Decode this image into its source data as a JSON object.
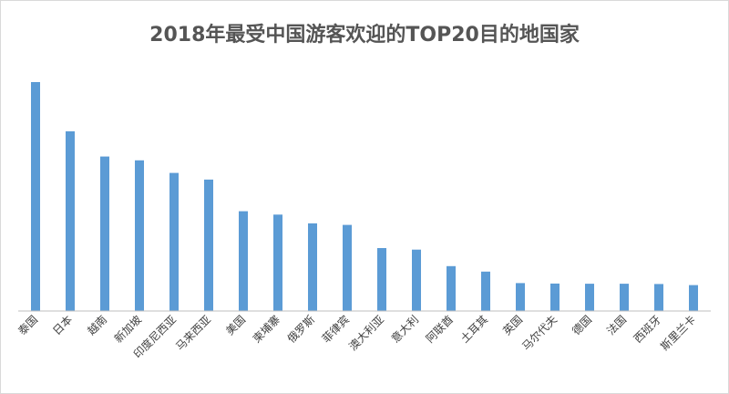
{
  "chart_data": {
    "type": "bar",
    "title": "2018年最受中国游客欢迎的TOP20目的地国家",
    "xlabel": "",
    "ylabel": "",
    "ylim": [
      0,
      100
    ],
    "grid": false,
    "legend": "none",
    "bar_color": "#5b9bd5",
    "categories": [
      "泰国",
      "日本",
      "越南",
      "新加坡",
      "印度尼西亚",
      "马来西亚",
      "美国",
      "柬埔寨",
      "俄罗斯",
      "菲律宾",
      "澳大利亚",
      "意大利",
      "阿联酋",
      "土耳其",
      "英国",
      "马尔代夫",
      "德国",
      "法国",
      "西班牙",
      "斯里兰卡"
    ],
    "values": [
      100,
      78.5,
      67.5,
      65.8,
      60.3,
      57.4,
      43.6,
      42.1,
      38.3,
      37.6,
      27.5,
      26.8,
      19.6,
      17.2,
      12.2,
      12.0,
      11.9,
      11.9,
      11.8,
      11.3
    ]
  }
}
